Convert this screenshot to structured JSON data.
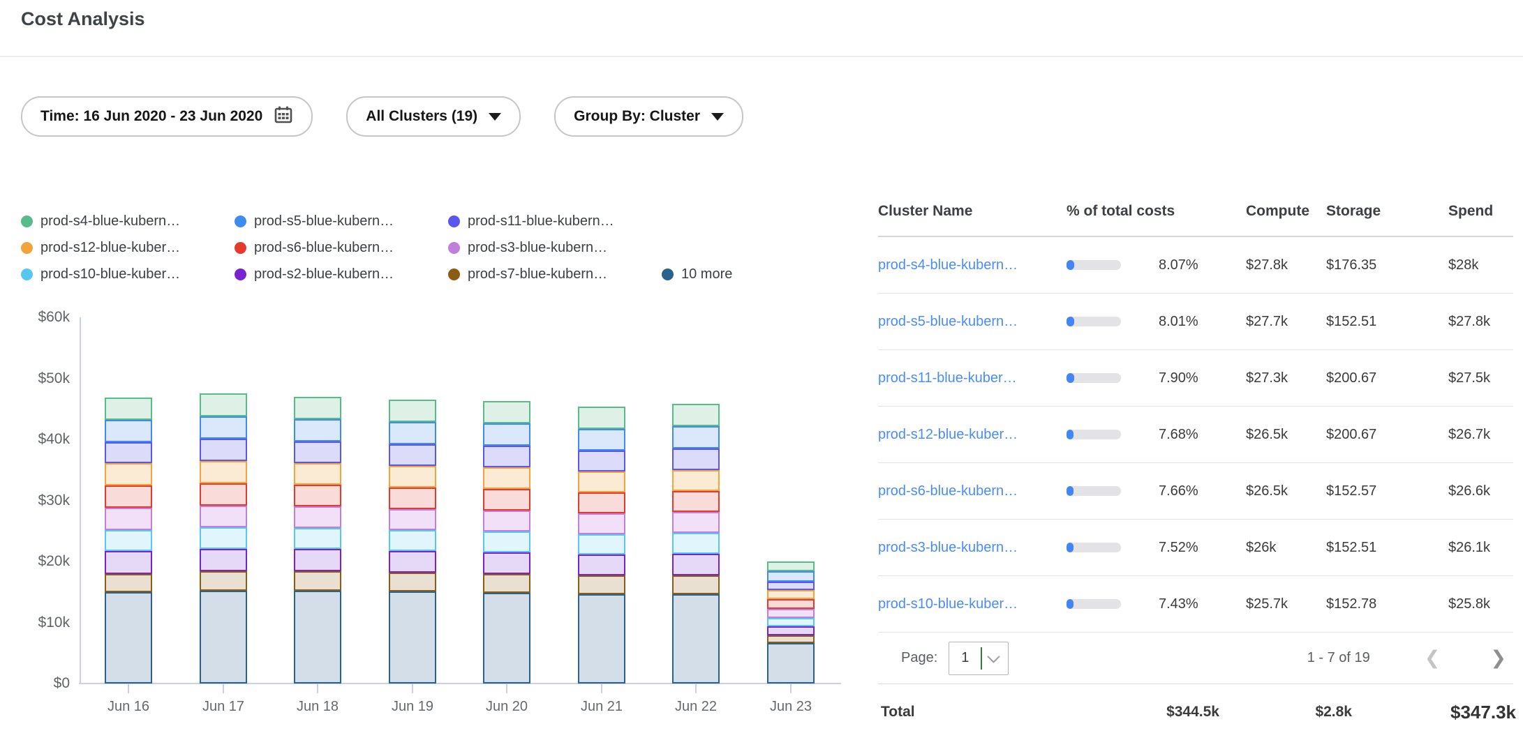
{
  "header": {
    "title": "Cost Analysis"
  },
  "filters": {
    "time_label": "Time: 16 Jun 2020 - 23 Jun 2020",
    "time_icon": "calendar-icon",
    "clusters_label": "All Clusters (19)",
    "group_by_label": "Group By: Cluster",
    "dropdown_icon": "caret-down-icon"
  },
  "chart_data": {
    "type": "bar",
    "stacked": true,
    "title": "",
    "x": [
      "Jun 16",
      "Jun 17",
      "Jun 18",
      "Jun 19",
      "Jun 20",
      "Jun 21",
      "Jun 22",
      "Jun 23"
    ],
    "y_unit": "USD thousands",
    "ylim": [
      0,
      60
    ],
    "grid": false,
    "legend_position": "top",
    "yticks": [
      {
        "value": 0,
        "label": "$0"
      },
      {
        "value": 10,
        "label": "$10k"
      },
      {
        "value": 20,
        "label": "$20k"
      },
      {
        "value": 30,
        "label": "$30k"
      },
      {
        "value": 40,
        "label": "$40k"
      },
      {
        "value": 50,
        "label": "$50k"
      },
      {
        "value": 60,
        "label": "$60k"
      }
    ],
    "stack_order_bottom_to_top": [
      "10 more",
      "prod-s7-blue-kubern…",
      "prod-s2-blue-kubern…",
      "prod-s10-blue-kuber…",
      "prod-s3-blue-kubern…",
      "prod-s6-blue-kubern…",
      "prod-s12-blue-kuber…",
      "prod-s11-blue-kubern…",
      "prod-s5-blue-kubern…",
      "prod-s4-blue-kubern…"
    ],
    "series": [
      {
        "name": "prod-s4-blue-kubern…",
        "color": "#57bb8a",
        "fill": "#dff0e7",
        "values": [
          3.7,
          3.75,
          3.7,
          3.7,
          3.65,
          3.6,
          3.6,
          1.6
        ]
      },
      {
        "name": "prod-s5-blue-kubern…",
        "color": "#3e8bf2",
        "fill": "#dbe8fc",
        "values": [
          3.7,
          3.7,
          3.7,
          3.65,
          3.6,
          3.55,
          3.6,
          1.7
        ]
      },
      {
        "name": "prod-s11-blue-kubern…",
        "color": "#5a57ee",
        "fill": "#dddbfa",
        "values": [
          3.4,
          3.6,
          3.55,
          3.5,
          3.5,
          3.45,
          3.5,
          1.4
        ]
      },
      {
        "name": "prod-s12-blue-kuber…",
        "color": "#f2a33c",
        "fill": "#fcebd4",
        "values": [
          3.7,
          3.6,
          3.55,
          3.55,
          3.5,
          3.4,
          3.45,
          1.5
        ]
      },
      {
        "name": "prod-s6-blue-kubern…",
        "color": "#e53a2e",
        "fill": "#f9dcda",
        "values": [
          3.7,
          3.6,
          3.55,
          3.5,
          3.5,
          3.45,
          3.45,
          1.6
        ]
      },
      {
        "name": "prod-s3-blue-kubern…",
        "color": "#c07fdb",
        "fill": "#f2e0f8",
        "values": [
          3.6,
          3.5,
          3.5,
          3.45,
          3.4,
          3.4,
          3.4,
          1.5
        ]
      },
      {
        "name": "prod-s10-blue-kuber…",
        "color": "#57c7f0",
        "fill": "#e0f6fc",
        "values": [
          3.45,
          3.5,
          3.45,
          3.45,
          3.4,
          3.35,
          3.4,
          1.4
        ]
      },
      {
        "name": "prod-s2-blue-kubern…",
        "color": "#7a22d0",
        "fill": "#e6d9f7",
        "values": [
          3.8,
          3.6,
          3.6,
          3.55,
          3.5,
          3.45,
          3.5,
          1.5
        ]
      },
      {
        "name": "prod-s7-blue-kubern…",
        "color": "#8c5c17",
        "fill": "#eae0d1",
        "values": [
          3.0,
          3.2,
          3.15,
          3.1,
          3.1,
          3.05,
          3.1,
          1.3
        ]
      },
      {
        "name": "10 more",
        "color": "#29618f",
        "fill": "#d3dee8",
        "values": [
          15.0,
          15.2,
          15.2,
          15.1,
          14.8,
          14.6,
          14.6,
          6.6
        ]
      }
    ]
  },
  "table": {
    "columns": {
      "name": "Cluster Name",
      "pct": "% of total costs",
      "compute": "Compute",
      "storage": "Storage",
      "spend": "Spend"
    },
    "progress_color": "#4285f4",
    "link_color": "#4a8cf7",
    "rows": [
      {
        "name": "prod-s4-blue-kubern…",
        "pct_value": 8.07,
        "pct": "8.07%",
        "compute": "$27.8k",
        "storage": "$176.35",
        "spend": "$28k"
      },
      {
        "name": "prod-s5-blue-kubern…",
        "pct_value": 8.01,
        "pct": "8.01%",
        "compute": "$27.7k",
        "storage": "$152.51",
        "spend": "$27.8k"
      },
      {
        "name": "prod-s11-blue-kuber…",
        "pct_value": 7.9,
        "pct": "7.90%",
        "compute": "$27.3k",
        "storage": "$200.67",
        "spend": "$27.5k"
      },
      {
        "name": "prod-s12-blue-kuber…",
        "pct_value": 7.68,
        "pct": "7.68%",
        "compute": "$26.5k",
        "storage": "$200.67",
        "spend": "$26.7k"
      },
      {
        "name": "prod-s6-blue-kubern…",
        "pct_value": 7.66,
        "pct": "7.66%",
        "compute": "$26.5k",
        "storage": "$152.57",
        "spend": "$26.6k"
      },
      {
        "name": "prod-s3-blue-kubern…",
        "pct_value": 7.52,
        "pct": "7.52%",
        "compute": "$26k",
        "storage": "$152.51",
        "spend": "$26.1k"
      },
      {
        "name": "prod-s10-blue-kuber…",
        "pct_value": 7.43,
        "pct": "7.43%",
        "compute": "$25.7k",
        "storage": "$152.78",
        "spend": "$25.8k"
      }
    ]
  },
  "pagination": {
    "page_label": "Page:",
    "page_value": "1",
    "range_text": "1 - 7 of 19",
    "prev_icon": "❮",
    "next_icon": "❯"
  },
  "totals": {
    "label": "Total",
    "compute": "$344.5k",
    "storage": "$2.8k",
    "spend": "$347.3k"
  }
}
